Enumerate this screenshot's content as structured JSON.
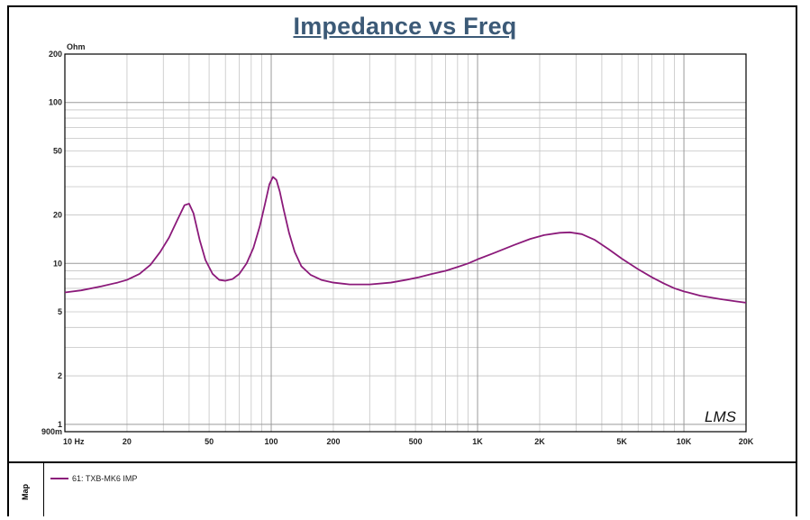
{
  "chart_data": {
    "type": "line",
    "title": "Impedance vs Freq",
    "y_unit_label": "Ohm",
    "x_scale": "log",
    "y_scale": "log",
    "xlim": [
      10,
      20000
    ],
    "ylim": [
      0.9,
      200
    ],
    "x_ticks": [
      {
        "value": 10,
        "label": "10  Hz"
      },
      {
        "value": 20,
        "label": "20"
      },
      {
        "value": 50,
        "label": "50"
      },
      {
        "value": 100,
        "label": "100"
      },
      {
        "value": 200,
        "label": "200"
      },
      {
        "value": 500,
        "label": "500"
      },
      {
        "value": 1000,
        "label": "1K"
      },
      {
        "value": 2000,
        "label": "2K"
      },
      {
        "value": 5000,
        "label": "5K"
      },
      {
        "value": 10000,
        "label": "10K"
      },
      {
        "value": 20000,
        "label": "20K"
      }
    ],
    "y_ticks": [
      {
        "value": 0.9,
        "label": "900m"
      },
      {
        "value": 1,
        "label": "1"
      },
      {
        "value": 2,
        "label": "2"
      },
      {
        "value": 5,
        "label": "5"
      },
      {
        "value": 10,
        "label": "10"
      },
      {
        "value": 20,
        "label": "20"
      },
      {
        "value": 50,
        "label": "50"
      },
      {
        "value": 100,
        "label": "100"
      },
      {
        "value": 200,
        "label": "200"
      }
    ],
    "grid": true,
    "watermark": "LMS",
    "series": [
      {
        "name": "61: TXB-MK6  IMP",
        "color": "#8b1a7a",
        "points": [
          [
            10,
            6.6
          ],
          [
            12,
            6.8
          ],
          [
            15,
            7.2
          ],
          [
            18,
            7.6
          ],
          [
            20,
            7.9
          ],
          [
            23,
            8.6
          ],
          [
            26,
            9.8
          ],
          [
            29,
            11.8
          ],
          [
            32,
            14.5
          ],
          [
            35,
            18.5
          ],
          [
            38,
            23.0
          ],
          [
            40,
            23.5
          ],
          [
            42,
            20.5
          ],
          [
            45,
            14.0
          ],
          [
            48,
            10.5
          ],
          [
            52,
            8.6
          ],
          [
            56,
            7.9
          ],
          [
            60,
            7.8
          ],
          [
            65,
            8.0
          ],
          [
            70,
            8.6
          ],
          [
            76,
            10.0
          ],
          [
            82,
            12.5
          ],
          [
            88,
            17.0
          ],
          [
            93,
            23.0
          ],
          [
            98,
            31.0
          ],
          [
            102,
            34.5
          ],
          [
            106,
            33.0
          ],
          [
            110,
            28.0
          ],
          [
            115,
            21.5
          ],
          [
            122,
            15.5
          ],
          [
            130,
            11.8
          ],
          [
            140,
            9.6
          ],
          [
            155,
            8.5
          ],
          [
            175,
            7.9
          ],
          [
            200,
            7.6
          ],
          [
            240,
            7.4
          ],
          [
            300,
            7.4
          ],
          [
            380,
            7.6
          ],
          [
            450,
            7.9
          ],
          [
            520,
            8.2
          ],
          [
            600,
            8.6
          ],
          [
            700,
            9.0
          ],
          [
            800,
            9.5
          ],
          [
            900,
            10.0
          ],
          [
            1000,
            10.6
          ],
          [
            1200,
            11.6
          ],
          [
            1500,
            13.0
          ],
          [
            1800,
            14.2
          ],
          [
            2100,
            15.0
          ],
          [
            2500,
            15.5
          ],
          [
            2800,
            15.6
          ],
          [
            3200,
            15.2
          ],
          [
            3700,
            14.0
          ],
          [
            4300,
            12.3
          ],
          [
            5000,
            10.7
          ],
          [
            6000,
            9.2
          ],
          [
            7000,
            8.2
          ],
          [
            8000,
            7.5
          ],
          [
            9000,
            7.0
          ],
          [
            10000,
            6.7
          ],
          [
            12000,
            6.3
          ],
          [
            15000,
            6.0
          ],
          [
            18000,
            5.8
          ],
          [
            20000,
            5.7
          ]
        ]
      }
    ]
  },
  "legend_side_label": "Map"
}
